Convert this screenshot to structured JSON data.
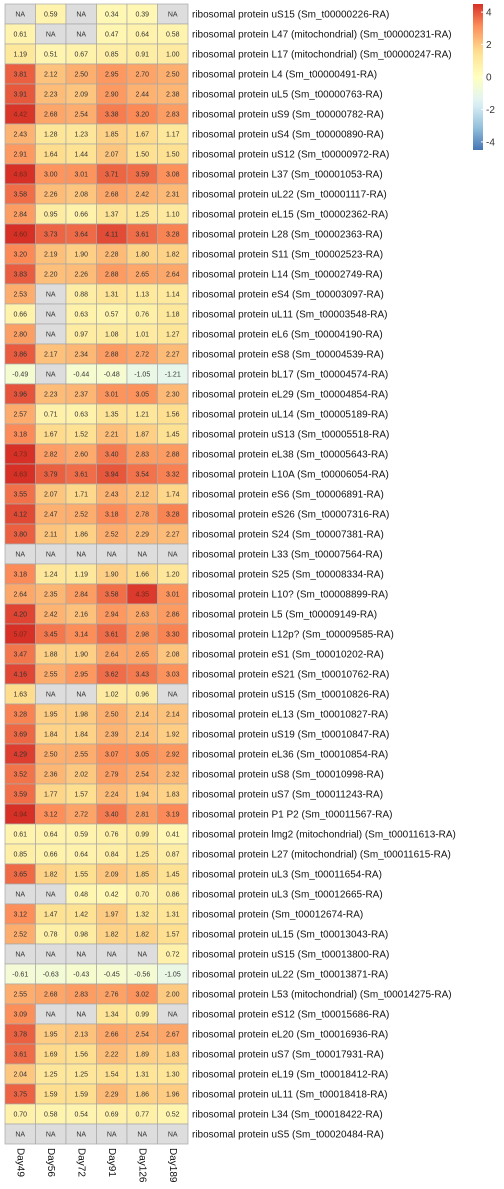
{
  "chart_data": {
    "type": "heatmap",
    "columns": [
      "Day49",
      "Day56",
      "Day72",
      "Day91",
      "Day126",
      "Day189"
    ],
    "na_label": "NA",
    "na_color": "#dddddd",
    "color_scale": {
      "min": -4.5,
      "max": 4.5,
      "low": "#4575b4",
      "mid": "#ffffbf",
      "high": "#d73027"
    },
    "legend": {
      "position": "top-right",
      "ticks": [
        "4",
        "2",
        "0",
        "-2",
        "-4"
      ],
      "tick_values": [
        4,
        2,
        0,
        -2,
        -4
      ]
    },
    "rows": [
      {
        "label": "ribosomal protein uS15 (Sm_t00000226-RA)",
        "values": [
          null,
          0.59,
          null,
          0.34,
          0.39,
          null
        ]
      },
      {
        "label": "ribosomal protein L47 (mitochondrial) (Sm_t00000231-RA)",
        "values": [
          0.61,
          null,
          null,
          0.47,
          0.64,
          0.58
        ]
      },
      {
        "label": "ribosomal protein L17 (mitochondrial) (Sm_t00000247-RA)",
        "values": [
          1.19,
          0.51,
          0.67,
          0.85,
          0.91,
          1.0
        ]
      },
      {
        "label": "ribosomal protein L4 (Sm_t00000491-RA)",
        "values": [
          3.81,
          2.12,
          2.5,
          2.95,
          2.7,
          2.5
        ]
      },
      {
        "label": "ribosomal protein uL5 (Sm_t00000763-RA)",
        "values": [
          3.91,
          2.23,
          2.09,
          2.9,
          2.44,
          2.38
        ]
      },
      {
        "label": "ribosomal protein uS9 (Sm_t00000782-RA)",
        "values": [
          4.42,
          2.68,
          2.54,
          3.38,
          3.2,
          2.83
        ]
      },
      {
        "label": "ribosomal protein uS4 (Sm_t00000890-RA)",
        "values": [
          2.43,
          1.28,
          1.23,
          1.85,
          1.67,
          1.17
        ]
      },
      {
        "label": "ribosomal protein uS12 (Sm_t00000972-RA)",
        "values": [
          2.91,
          1.64,
          1.44,
          2.07,
          1.5,
          1.5
        ]
      },
      {
        "label": "ribosomal protein L37 (Sm_t00001053-RA)",
        "values": [
          4.63,
          3.0,
          3.01,
          3.71,
          3.59,
          3.08
        ]
      },
      {
        "label": "ribosomal protein uL22 (Sm_t00001117-RA)",
        "values": [
          3.58,
          2.26,
          2.08,
          2.68,
          2.42,
          2.31
        ]
      },
      {
        "label": "ribosomal protein eL15 (Sm_t00002362-RA)",
        "values": [
          2.84,
          0.95,
          0.66,
          1.37,
          1.25,
          1.1
        ]
      },
      {
        "label": "ribosomal protein L28 (Sm_t00002363-RA)",
        "values": [
          4.6,
          3.73,
          3.64,
          4.11,
          3.61,
          3.28
        ]
      },
      {
        "label": "ribosomal protein S11 (Sm_t00002523-RA)",
        "values": [
          3.2,
          2.19,
          1.9,
          2.28,
          1.8,
          1.82
        ]
      },
      {
        "label": "ribosomal protein L14 (Sm_t00002749-RA)",
        "values": [
          3.83,
          2.2,
          2.26,
          2.88,
          2.65,
          2.64
        ]
      },
      {
        "label": "ribosomal protein eS4 (Sm_t00003097-RA)",
        "values": [
          2.53,
          null,
          0.88,
          1.31,
          1.13,
          1.14
        ]
      },
      {
        "label": "ribosomal protein uL11 (Sm_t00003548-RA)",
        "values": [
          0.66,
          null,
          0.63,
          0.57,
          0.76,
          1.18
        ]
      },
      {
        "label": "ribosomal protein eL6 (Sm_t00004190-RA)",
        "values": [
          2.8,
          null,
          0.97,
          1.08,
          1.01,
          1.27
        ]
      },
      {
        "label": "ribosomal protein eS8 (Sm_t00004539-RA)",
        "values": [
          3.86,
          2.17,
          2.34,
          2.88,
          2.72,
          2.27
        ]
      },
      {
        "label": "ribosomal protein bL17 (Sm_t00004574-RA)",
        "values": [
          -0.49,
          null,
          -0.44,
          -0.48,
          -1.05,
          -1.21
        ]
      },
      {
        "label": "ribosomal protein eL29 (Sm_t00004854-RA)",
        "values": [
          3.96,
          2.23,
          2.37,
          3.01,
          3.05,
          2.3
        ]
      },
      {
        "label": "ribosomal protein uL14 (Sm_t00005189-RA)",
        "values": [
          2.57,
          0.71,
          0.63,
          1.35,
          1.21,
          1.56
        ]
      },
      {
        "label": "ribosomal protein uS13 (Sm_t00005518-RA)",
        "values": [
          3.18,
          1.67,
          1.52,
          2.21,
          1.87,
          1.45
        ]
      },
      {
        "label": "ribosomal protein eL38 (Sm_t00005643-RA)",
        "values": [
          4.73,
          2.82,
          2.6,
          3.4,
          2.83,
          2.88
        ]
      },
      {
        "label": "ribosomal protein L10A (Sm_t00006054-RA)",
        "values": [
          4.63,
          3.79,
          3.61,
          3.94,
          3.54,
          3.32
        ]
      },
      {
        "label": "ribosomal protein eS6 (Sm_t00006891-RA)",
        "values": [
          3.55,
          2.07,
          1.71,
          2.43,
          2.12,
          1.74
        ]
      },
      {
        "label": "ribosomal protein eS26 (Sm_t00007316-RA)",
        "values": [
          4.12,
          2.47,
          2.52,
          3.18,
          2.78,
          3.28
        ]
      },
      {
        "label": "ribosomal protein S24 (Sm_t00007381-RA)",
        "values": [
          3.8,
          2.11,
          1.86,
          2.52,
          2.29,
          2.27
        ]
      },
      {
        "label": "ribosomal protein L33 (Sm_t00007564-RA)",
        "values": [
          null,
          null,
          null,
          null,
          null,
          null
        ]
      },
      {
        "label": "ribosomal protein S25 (Sm_t00008334-RA)",
        "values": [
          3.18,
          1.24,
          1.19,
          1.9,
          1.66,
          1.2
        ]
      },
      {
        "label": "ribosomal protein L10? (Sm_t00008899-RA)",
        "values": [
          2.64,
          2.35,
          2.84,
          3.58,
          4.35,
          3.01
        ]
      },
      {
        "label": "ribosomal protein L5 (Sm_t00009149-RA)",
        "values": [
          4.2,
          2.42,
          2.16,
          2.94,
          2.63,
          2.86
        ]
      },
      {
        "label": "ribosomal protein L12p? (Sm_t00009585-RA)",
        "values": [
          5.07,
          3.45,
          3.14,
          3.61,
          2.98,
          3.3
        ]
      },
      {
        "label": "ribosomal protein eS1 (Sm_t00010202-RA)",
        "values": [
          3.47,
          1.88,
          1.9,
          2.64,
          2.65,
          2.08
        ]
      },
      {
        "label": "ribosomal protein eS21 (Sm_t00010762-RA)",
        "values": [
          4.16,
          2.55,
          2.95,
          3.62,
          3.43,
          3.03
        ]
      },
      {
        "label": "ribosomal protein uS15 (Sm_t00010826-RA)",
        "values": [
          1.63,
          null,
          null,
          1.02,
          0.96,
          null
        ]
      },
      {
        "label": "ribosomal protein eL13 (Sm_t00010827-RA)",
        "values": [
          3.28,
          1.95,
          1.98,
          2.5,
          2.14,
          2.14
        ]
      },
      {
        "label": "ribosomal protein uS19 (Sm_t00010847-RA)",
        "values": [
          3.69,
          1.84,
          1.84,
          2.39,
          2.14,
          1.92
        ]
      },
      {
        "label": "ribosomal protein eL36 (Sm_t00010854-RA)",
        "values": [
          4.29,
          2.5,
          2.55,
          3.07,
          3.05,
          2.92
        ]
      },
      {
        "label": "ribosomal protein uS8 (Sm_t00010998-RA)",
        "values": [
          3.52,
          2.36,
          2.02,
          2.79,
          2.54,
          2.32
        ]
      },
      {
        "label": "ribosomal protein uS7 (Sm_t00011243-RA)",
        "values": [
          3.59,
          1.77,
          1.57,
          2.24,
          1.94,
          1.83
        ]
      },
      {
        "label": "ribosomal protein P1 P2 (Sm_t00011567-RA)",
        "values": [
          4.94,
          3.12,
          2.72,
          3.4,
          2.81,
          3.19
        ]
      },
      {
        "label": "ribosomal protein lmg2 (mitochondrial) (Sm_t00011613-RA)",
        "values": [
          0.61,
          0.64,
          0.59,
          0.76,
          0.99,
          0.41
        ]
      },
      {
        "label": "ribosomal protein L27 (mitochondrial) (Sm_t00011615-RA)",
        "values": [
          0.85,
          0.66,
          0.64,
          0.84,
          1.25,
          0.87
        ]
      },
      {
        "label": "ribosomal protein uL3 (Sm_t00011654-RA)",
        "values": [
          3.65,
          1.82,
          1.55,
          2.09,
          1.85,
          1.45
        ]
      },
      {
        "label": "ribosomal protein uL3 (Sm_t00012665-RA)",
        "values": [
          null,
          null,
          0.48,
          0.42,
          0.7,
          0.86
        ]
      },
      {
        "label": "ribosomal protein (Sm_t00012674-RA)",
        "values": [
          3.12,
          1.47,
          1.42,
          1.97,
          1.32,
          1.31
        ]
      },
      {
        "label": "ribosomal protein uL15 (Sm_t00013043-RA)",
        "values": [
          2.52,
          0.78,
          0.98,
          1.82,
          1.82,
          1.57
        ]
      },
      {
        "label": "ribosomal protein uS15 (Sm_t00013800-RA)",
        "values": [
          null,
          null,
          null,
          null,
          null,
          0.72
        ]
      },
      {
        "label": "ribosomal protein uL22 (Sm_t00013871-RA)",
        "values": [
          -0.61,
          -0.63,
          -0.43,
          -0.45,
          -0.56,
          -1.05
        ]
      },
      {
        "label": "ribosomal protein L53 (mitochondrial) (Sm_t00014275-RA)",
        "values": [
          2.55,
          2.68,
          2.83,
          2.76,
          3.02,
          2.0
        ]
      },
      {
        "label": "ribosomal protein eS12 (Sm_t00015686-RA)",
        "values": [
          3.09,
          null,
          null,
          1.34,
          0.99,
          null
        ]
      },
      {
        "label": "ribosomal protein eL20 (Sm_t00016936-RA)",
        "values": [
          3.78,
          1.95,
          2.13,
          2.66,
          2.54,
          2.67
        ]
      },
      {
        "label": "ribosomal protein uS7 (Sm_t00017931-RA)",
        "values": [
          3.61,
          1.69,
          1.56,
          2.22,
          1.89,
          1.83
        ]
      },
      {
        "label": "ribosomal protein eL19 (Sm_t00018412-RA)",
        "values": [
          2.04,
          1.25,
          1.25,
          1.54,
          1.31,
          1.3
        ]
      },
      {
        "label": "ribosomal protein uL11 (Sm_t00018418-RA)",
        "values": [
          3.75,
          1.59,
          1.59,
          2.29,
          1.86,
          1.96
        ]
      },
      {
        "label": "ribosomal protein L34 (Sm_t00018422-RA)",
        "values": [
          0.7,
          0.58,
          0.54,
          0.69,
          0.77,
          0.52
        ]
      },
      {
        "label": "ribosomal protein uS5 (Sm_t00020484-RA)",
        "values": [
          null,
          null,
          null,
          null,
          null,
          null
        ]
      }
    ]
  }
}
